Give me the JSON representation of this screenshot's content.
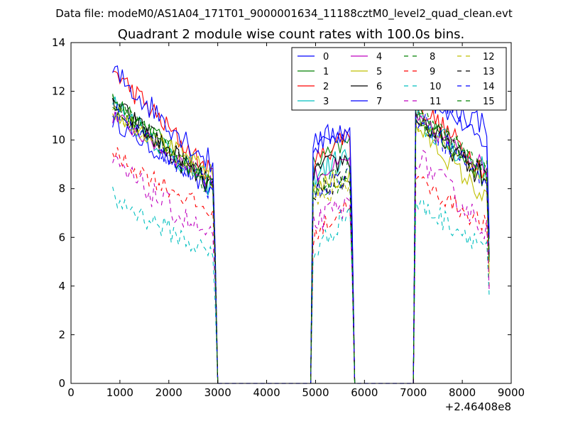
{
  "chart_data": {
    "type": "line",
    "suptitle": "Data file: modeM0/AS1A04_171T01_9000001634_11188cztM0_level2_quad_clean.evt",
    "title": "Quadrant 2 module wise count rates with 100.0s bins.",
    "xlabel": "",
    "ylabel": "",
    "offset_label": "+2.46408e8",
    "xlim": [
      0,
      9000
    ],
    "ylim": [
      0,
      14
    ],
    "xticks": [
      0,
      1000,
      2000,
      3000,
      4000,
      5000,
      6000,
      7000,
      8000,
      9000
    ],
    "yticks": [
      0,
      2,
      4,
      6,
      8,
      10,
      12,
      14
    ],
    "legend_position": "top-right",
    "legend_columns": 4,
    "segments": [
      {
        "start": 850,
        "end": 2950
      },
      {
        "start": 4950,
        "end": 5750
      },
      {
        "start": 7050,
        "end": 8550
      }
    ],
    "gap_ranges": [
      [
        3000,
        4900
      ],
      [
        5850,
        7000
      ]
    ],
    "series": [
      {
        "name": "0",
        "color": "#0000ff",
        "dash": "solid",
        "level": [
          10.8,
          9.9,
          12.2
        ],
        "slope": [
          -3.0,
          0.4,
          -2.5
        ]
      },
      {
        "name": "1",
        "color": "#008000",
        "dash": "solid",
        "level": [
          11.8,
          9.0,
          11.2
        ],
        "slope": [
          -3.8,
          1.0,
          -3.0
        ]
      },
      {
        "name": "2",
        "color": "#ff0000",
        "dash": "solid",
        "level": [
          12.9,
          9.0,
          11.6
        ],
        "slope": [
          -4.5,
          1.5,
          -3.0
        ]
      },
      {
        "name": "3",
        "color": "#00bfbf",
        "dash": "solid",
        "level": [
          11.5,
          8.6,
          10.8
        ],
        "slope": [
          -3.5,
          0.8,
          -2.2
        ]
      },
      {
        "name": "4",
        "color": "#bf00bf",
        "dash": "solid",
        "level": [
          11.0,
          8.5,
          10.8
        ],
        "slope": [
          -2.8,
          0.7,
          -2.0
        ]
      },
      {
        "name": "5",
        "color": "#bfbf00",
        "dash": "solid",
        "level": [
          11.2,
          8.0,
          10.6
        ],
        "slope": [
          -2.7,
          0.6,
          -3.2
        ]
      },
      {
        "name": "6",
        "color": "#000000",
        "dash": "solid",
        "level": [
          11.5,
          8.7,
          11.0
        ],
        "slope": [
          -3.6,
          0.6,
          -2.8
        ]
      },
      {
        "name": "7",
        "color": "#0000ff",
        "dash": "solid",
        "level": [
          12.8,
          9.8,
          12.0
        ],
        "slope": [
          -3.9,
          0.8,
          -1.4
        ]
      },
      {
        "name": "8",
        "color": "#008000",
        "dash": "dashed",
        "level": [
          11.6,
          7.8,
          11.4
        ],
        "slope": [
          -3.6,
          0.6,
          -2.8
        ]
      },
      {
        "name": "9",
        "color": "#ff0000",
        "dash": "dashed",
        "level": [
          9.4,
          6.0,
          8.4
        ],
        "slope": [
          -2.5,
          1.6,
          -2.0
        ]
      },
      {
        "name": "10",
        "color": "#00bfbf",
        "dash": "dashed",
        "level": [
          7.6,
          5.3,
          7.4
        ],
        "slope": [
          -2.4,
          2.0,
          -1.8
        ]
      },
      {
        "name": "11",
        "color": "#bf00bf",
        "dash": "dashed",
        "level": [
          9.0,
          6.6,
          9.4
        ],
        "slope": [
          -3.2,
          0.8,
          -3.2
        ]
      },
      {
        "name": "12",
        "color": "#bfbf00",
        "dash": "dashed",
        "level": [
          11.2,
          7.4,
          10.8
        ],
        "slope": [
          -3.0,
          0.8,
          -2.6
        ]
      },
      {
        "name": "13",
        "color": "#000000",
        "dash": "dashed",
        "level": [
          11.4,
          7.8,
          11.0
        ],
        "slope": [
          -3.2,
          0.7,
          -2.6
        ]
      },
      {
        "name": "14",
        "color": "#0000ff",
        "dash": "dashed",
        "level": [
          11.2,
          7.9,
          11.0
        ],
        "slope": [
          -3.4,
          0.8,
          -2.8
        ]
      },
      {
        "name": "15",
        "color": "#008000",
        "dash": "dashed",
        "level": [
          11.5,
          7.9,
          11.2
        ],
        "slope": [
          -3.5,
          0.8,
          -2.7
        ]
      }
    ]
  }
}
